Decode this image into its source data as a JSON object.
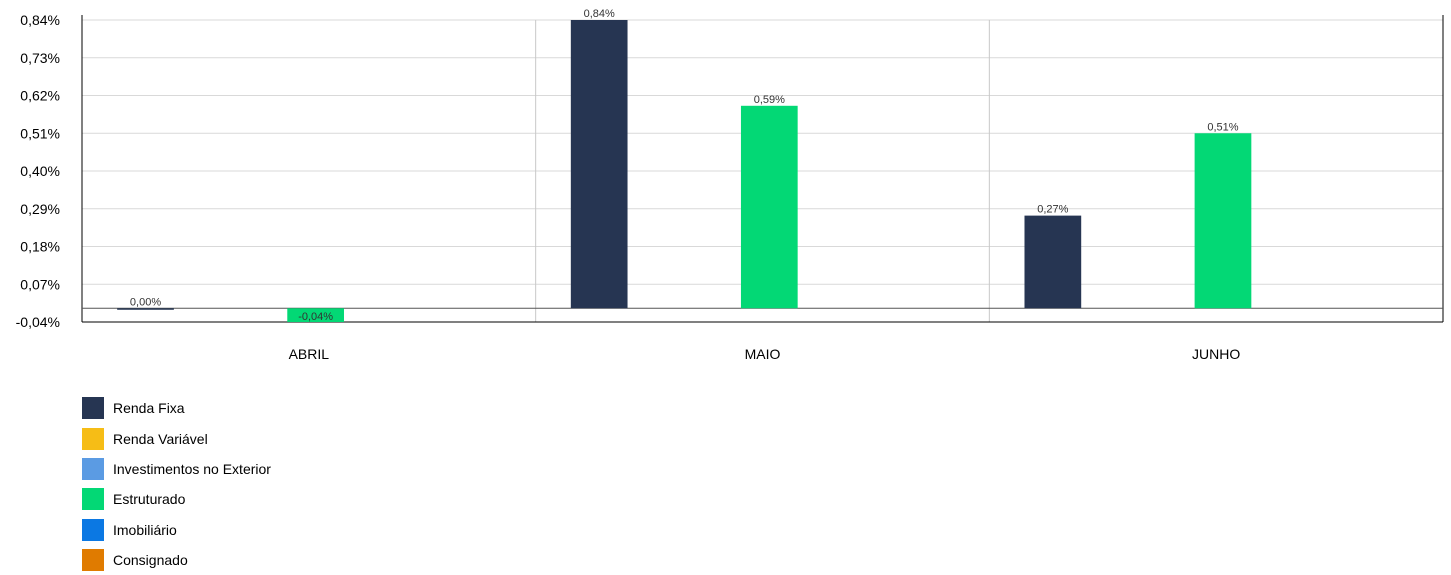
{
  "chart_data": {
    "type": "bar",
    "categories": [
      "ABRIL",
      "MAIO",
      "JUNHO"
    ],
    "y_ticks": [
      "-0,04%",
      "0,07%",
      "0,18%",
      "0,29%",
      "0,40%",
      "0,51%",
      "0,62%",
      "0,73%",
      "0,84%"
    ],
    "ylim": [
      -0.04,
      0.84
    ],
    "grid": true,
    "legend_position": "bottom-left",
    "series": [
      {
        "name": "Renda Fixa",
        "color": "#263552",
        "values": [
          0.0,
          0.84,
          0.27
        ],
        "labels": [
          "0,00%",
          "0,84%",
          "0,27%"
        ]
      },
      {
        "name": "Renda Variável",
        "color": "#f6bd16",
        "values": [
          null,
          null,
          null
        ],
        "labels": [
          "",
          "",
          ""
        ]
      },
      {
        "name": "Investimentos no Exterior",
        "color": "#5b9be3",
        "values": [
          null,
          null,
          null
        ],
        "labels": [
          "",
          "",
          ""
        ]
      },
      {
        "name": "Estruturado",
        "color": "#03d875",
        "values": [
          -0.04,
          0.59,
          0.51
        ],
        "labels": [
          "-0,04%",
          "0,59%",
          "0,51%"
        ]
      },
      {
        "name": "Imobiliário",
        "color": "#0b78e3",
        "values": [
          null,
          null,
          null
        ],
        "labels": [
          "",
          "",
          ""
        ]
      },
      {
        "name": "Consignado",
        "color": "#e07b00",
        "values": [
          null,
          null,
          null
        ],
        "labels": [
          "",
          "",
          ""
        ]
      }
    ]
  }
}
